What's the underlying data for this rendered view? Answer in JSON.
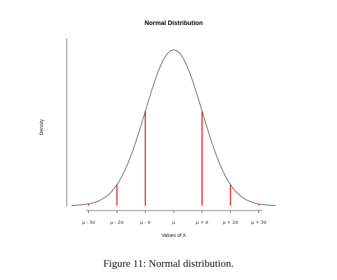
{
  "chart_data": {
    "type": "line",
    "title": "Normal Distribution",
    "xlabel": "Values of X",
    "ylabel": "Density",
    "x_ticks": [
      {
        "value": -3,
        "label": "μ - 3σ"
      },
      {
        "value": -2,
        "label": "μ - 2σ"
      },
      {
        "value": -1,
        "label": "μ - σ"
      },
      {
        "value": 0,
        "label": "μ"
      },
      {
        "value": 1,
        "label": "μ + σ"
      },
      {
        "value": 2,
        "label": "μ + 2σ"
      },
      {
        "value": 3,
        "label": "μ + 3σ"
      }
    ],
    "xlim": [
      -3.6,
      3.6
    ],
    "ylim": [
      0,
      0.42
    ],
    "series": [
      {
        "curve": "standard normal density",
        "mean": 0,
        "sd": 1
      }
    ],
    "vertical_lines": [
      -3,
      -2,
      -1,
      1,
      2,
      3
    ],
    "line_color": "#555555",
    "marker_color": "#dd2222",
    "grid": false,
    "y_ticks_shown": false
  },
  "caption": "Figure 11: Normal distribution."
}
